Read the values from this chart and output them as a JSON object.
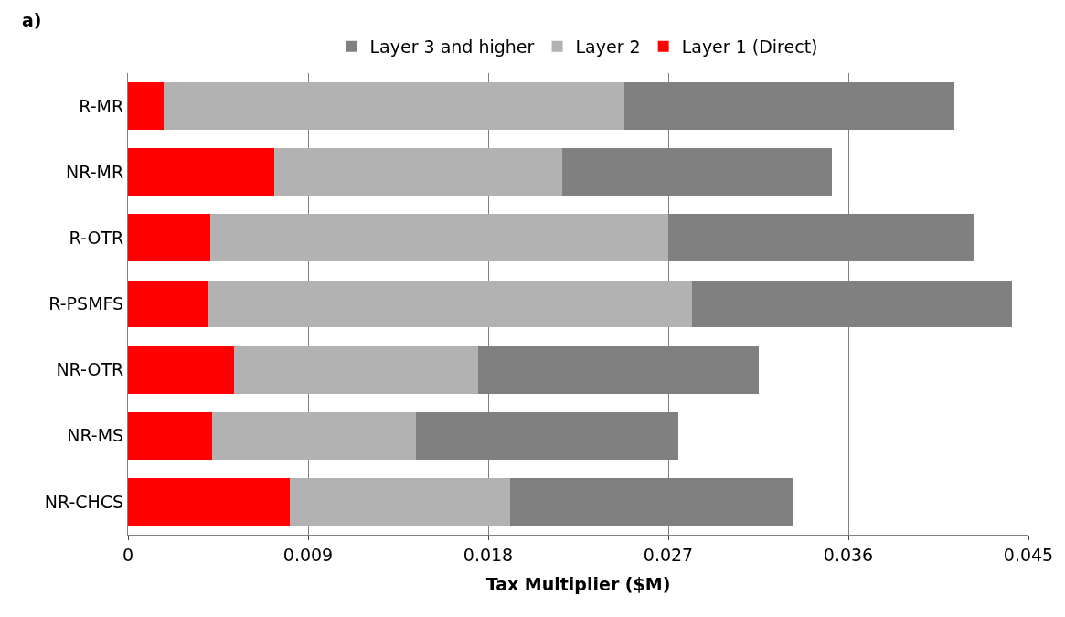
{
  "chart_data": {
    "type": "bar",
    "orientation": "horizontal",
    "stacked": true,
    "xlabel": "Tax Multiplier ($M)",
    "annotations": [
      "a)"
    ],
    "categories": [
      "R-MR",
      "NR-MR",
      "R-OTR",
      "R-PSMFS",
      "NR-OTR",
      "NR-MS",
      "NR-CHCS"
    ],
    "series": [
      {
        "name": "Layer 1 (Direct)",
        "color": "#ff0000",
        "values": [
          0.0018,
          0.0073,
          0.0041,
          0.004,
          0.0053,
          0.0042,
          0.0081
        ]
      },
      {
        "name": "Layer 2",
        "color": "#b2b2b2",
        "values": [
          0.023,
          0.0144,
          0.0229,
          0.0242,
          0.0122,
          0.0102,
          0.011
        ]
      },
      {
        "name": "Layer 3 and higher",
        "color": "#808080",
        "values": [
          0.0165,
          0.0135,
          0.0153,
          0.016,
          0.014,
          0.0131,
          0.0141
        ]
      }
    ],
    "xlim": [
      0,
      0.045
    ],
    "xticks": [
      0,
      0.009,
      0.018,
      0.027,
      0.036,
      0.045
    ],
    "grid": "x",
    "legend": "top"
  }
}
